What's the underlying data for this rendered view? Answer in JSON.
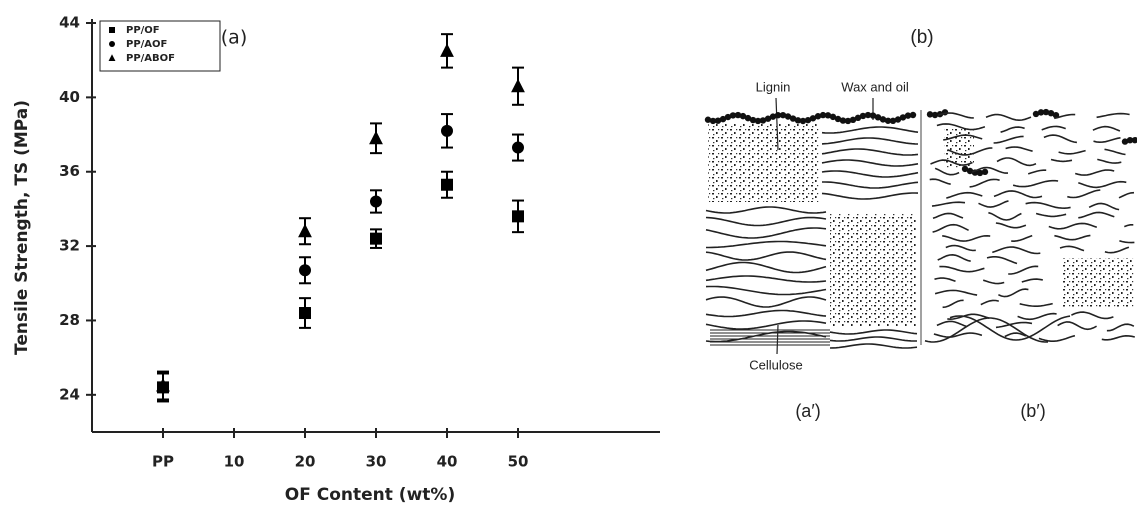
{
  "chart_data": {
    "type": "scatter",
    "panel_label": "(a)",
    "xlabel": "OF Content (wt%)",
    "ylabel": "Tensile Strength, TS (MPa)",
    "xlim": [
      -10,
      70
    ],
    "xticks": [
      {
        "value": 0,
        "label": "PP"
      },
      10,
      20,
      30,
      40,
      50
    ],
    "ylim": [
      22,
      44
    ],
    "yticks": [
      24,
      28,
      32,
      36,
      40,
      44
    ],
    "legend": "upper left",
    "series": [
      {
        "name": "PP/OF",
        "color": "#000000",
        "marker": "square",
        "x": [
          0,
          20,
          30,
          40,
          50
        ],
        "values": [
          24.4,
          28.4,
          32.4,
          35.3,
          33.6
        ],
        "errors": [
          0.75,
          0.8,
          0.5,
          0.7,
          0.85
        ]
      },
      {
        "name": "PP/AOF",
        "color": "#000000",
        "marker": "circle",
        "x": [
          0,
          20,
          30,
          40,
          50
        ],
        "values": [
          24.4,
          30.7,
          34.4,
          38.2,
          37.3
        ],
        "errors": [
          0.75,
          0.7,
          0.6,
          0.9,
          0.7
        ]
      },
      {
        "name": "PP/ABOF",
        "color": "#000000",
        "marker": "triangle",
        "x": [
          0,
          20,
          30,
          40,
          50
        ],
        "values": [
          24.5,
          32.8,
          37.8,
          42.5,
          40.6
        ],
        "errors": [
          0.75,
          0.7,
          0.8,
          0.9,
          1.0
        ]
      }
    ]
  },
  "diagram": {
    "label": "(b)",
    "annotations": [
      "Lignin",
      "Wax and oil",
      "Cellulose"
    ],
    "panels": [
      "(a′)",
      "(b′)"
    ]
  }
}
